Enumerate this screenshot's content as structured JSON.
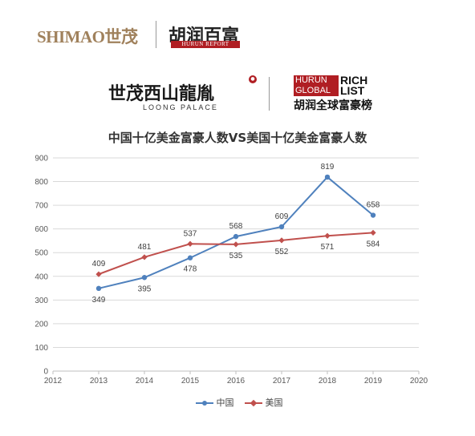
{
  "logos": {
    "shimao": "SHIMAO世茂",
    "hurun_cn": "胡润百富",
    "hurun_report": "HURUN REPORT",
    "loong_cn": "世茂西山龍胤",
    "loong_en": "LOONG PALACE",
    "rich_list_line1_left": "HURUN",
    "rich_list_line2_left": "GLOBAL",
    "rich_list_line1_right": "RICH",
    "rich_list_line2_right": "LIST",
    "rich_list_cn": "胡润全球富豪榜"
  },
  "colors": {
    "china": "#4f81bd",
    "usa": "#c0504d",
    "grid": "#d9d9d9",
    "axis_text": "#595959"
  },
  "chart_data": {
    "type": "line",
    "title": "中国十亿美金富豪人数VS美国十亿美金富豪人数",
    "x": [
      2013,
      2014,
      2015,
      2016,
      2017,
      2018,
      2019
    ],
    "xlim": [
      2012,
      2020
    ],
    "xticks": [
      2012,
      2013,
      2014,
      2015,
      2016,
      2017,
      2018,
      2019,
      2020
    ],
    "ylim": [
      0,
      900
    ],
    "yticks": [
      0,
      100,
      200,
      300,
      400,
      500,
      600,
      700,
      800,
      900
    ],
    "grid": true,
    "legend_position": "bottom",
    "series": [
      {
        "name": "中国",
        "values": [
          349,
          395,
          478,
          568,
          609,
          819,
          658
        ],
        "marker": "circle",
        "color": "#4f81bd"
      },
      {
        "name": "美国",
        "values": [
          409,
          481,
          537,
          535,
          552,
          571,
          584
        ],
        "marker": "diamond",
        "color": "#c0504d"
      }
    ]
  }
}
